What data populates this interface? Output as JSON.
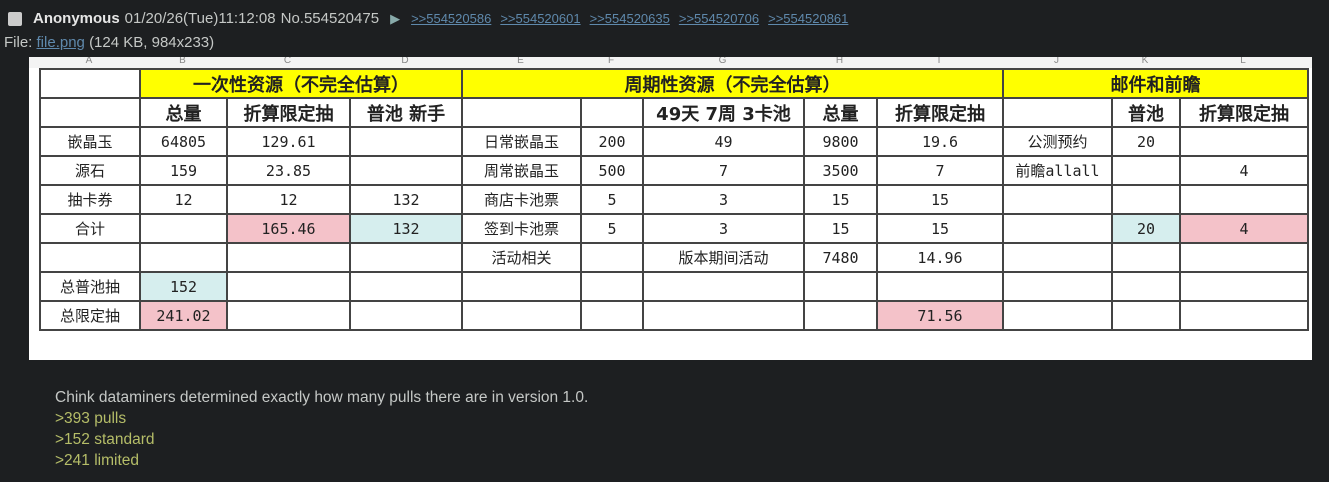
{
  "post": {
    "name": "Anonymous",
    "datetime": "01/20/26(Tue)11:12:08",
    "number": "No.554520475",
    "replies": [
      ">>554520586",
      ">>554520601",
      ">>554520635",
      ">>554520706",
      ">>554520861"
    ],
    "file_label": "File:",
    "file_name": "file.png",
    "file_info": "(124 KB, 984x233)",
    "message": [
      "Chink dataminers determined exactly how many pulls there are in version 1.0."
    ],
    "greentext": [
      ">393 pulls",
      ">152 standard",
      ">241 limited"
    ]
  },
  "sheet": {
    "columns": [
      "A",
      "B",
      "C",
      "D",
      "E",
      "F",
      "G",
      "H",
      "I",
      "J",
      "K",
      "L"
    ],
    "colors": {
      "header": "#ffff00",
      "limited": "#f4c2c9",
      "standard": "#d6eeee"
    },
    "sections": [
      "一次性资源（不完全估算）",
      "周期性资源（不完全估算）",
      "邮件和前瞻"
    ],
    "rows": [
      {
        "cells": [
          "",
          "总量",
          "折算限定抽",
          "普池 新手",
          "",
          "",
          "49天 7周 3卡池",
          "总量",
          "折算限定抽",
          "",
          "普池",
          "折算限定抽"
        ],
        "fills": [
          "",
          "",
          "",
          "",
          "",
          "",
          "",
          "",
          "",
          "",
          "",
          ""
        ],
        "header": true
      },
      {
        "cells": [
          "嵌晶玉",
          "64805",
          "129.61",
          "",
          "日常嵌晶玉",
          "200",
          "49",
          "9800",
          "19.6",
          "公测预约",
          "20",
          ""
        ],
        "fills": [
          "",
          "",
          "",
          "",
          "",
          "",
          "",
          "",
          "",
          "",
          "",
          ""
        ]
      },
      {
        "cells": [
          "源石",
          "159",
          "23.85",
          "",
          "周常嵌晶玉",
          "500",
          "7",
          "3500",
          "7",
          "前瞻allall",
          "",
          "4"
        ],
        "fills": [
          "",
          "",
          "",
          "",
          "",
          "",
          "",
          "",
          "",
          "",
          "",
          ""
        ]
      },
      {
        "cells": [
          "抽卡券",
          "12",
          "12",
          "132",
          "商店卡池票",
          "5",
          "3",
          "15",
          "15",
          "",
          "",
          ""
        ],
        "fills": [
          "",
          "",
          "",
          "",
          "",
          "",
          "",
          "",
          "",
          "",
          "",
          ""
        ]
      },
      {
        "cells": [
          "合计",
          "",
          "165.46",
          "132",
          "签到卡池票",
          "5",
          "3",
          "15",
          "15",
          "",
          "20",
          "4"
        ],
        "fills": [
          "",
          "",
          "p",
          "c",
          "",
          "",
          "",
          "",
          "",
          "",
          "c",
          "p"
        ]
      },
      {
        "cells": [
          "",
          "",
          "",
          "",
          "活动相关",
          "",
          "版本期间活动",
          "7480",
          "14.96",
          "",
          "",
          ""
        ],
        "fills": [
          "",
          "",
          "",
          "",
          "",
          "",
          "",
          "",
          "",
          "",
          "",
          ""
        ]
      },
      {
        "cells": [
          "总普池抽",
          "152",
          "",
          "",
          "",
          "",
          "",
          "",
          "",
          "",
          "",
          ""
        ],
        "fills": [
          "",
          "c",
          "",
          "",
          "",
          "",
          "",
          "",
          "",
          "",
          "",
          ""
        ]
      },
      {
        "cells": [
          "总限定抽",
          "241.02",
          "",
          "",
          "",
          "",
          "",
          "",
          "71.56",
          "",
          "",
          ""
        ],
        "fills": [
          "",
          "p",
          "",
          "",
          "",
          "",
          "",
          "",
          "p",
          "",
          "",
          ""
        ]
      }
    ]
  }
}
